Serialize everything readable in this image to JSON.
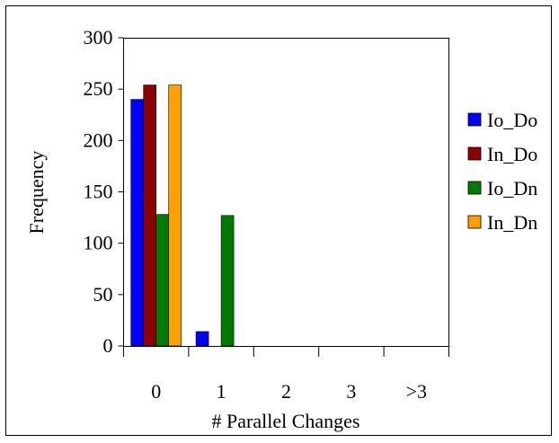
{
  "chart_data": {
    "type": "bar",
    "categories": [
      "0",
      "1",
      "2",
      "3",
      ">3"
    ],
    "series": [
      {
        "name": "Io_Do",
        "color": "#0000ff",
        "values": [
          240,
          14,
          0,
          0,
          0
        ]
      },
      {
        "name": "In_Do",
        "color": "#8b0000",
        "values": [
          254,
          0,
          0,
          0,
          0
        ]
      },
      {
        "name": "Io_Dn",
        "color": "#007a00",
        "values": [
          128,
          127,
          0,
          0,
          0
        ]
      },
      {
        "name": "In_Dn",
        "color": "#ff9f00",
        "values": [
          254,
          0,
          0,
          0,
          0
        ]
      }
    ],
    "xlabel": "# Parallel Changes",
    "ylabel": "Frequency",
    "ylim": [
      0,
      300
    ],
    "yticks": [
      "0",
      "50",
      "100",
      "150",
      "200",
      "250",
      "300"
    ],
    "grid": false,
    "legend_position": "right"
  }
}
